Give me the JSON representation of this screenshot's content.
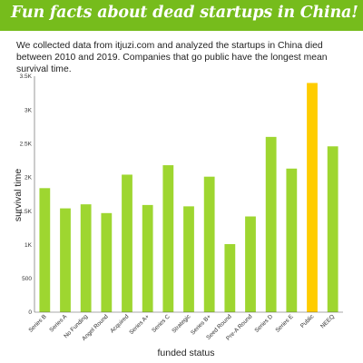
{
  "title": "Fun facts about dead startups in China!",
  "subtitle": "We collected data from itjuzi.com and analyzed the startups in China died between 2010 and 2019. Companies that go public have the longest mean survival time.",
  "colors": {
    "banner": "#76bc1c",
    "bar": "#9ed630",
    "highlight": "#ffcc00"
  },
  "chart_data": {
    "type": "bar",
    "title": "",
    "xlabel": "funded status",
    "ylabel": "survival time",
    "categories": [
      "Series B",
      "Series A",
      "No Funding",
      "Angel Round",
      "Acquired",
      "Series A+",
      "Series C",
      "Strategic",
      "Series B+",
      "Seed Round",
      "Pre-A Round",
      "Series D",
      "Series E",
      "Public",
      "NEEQ"
    ],
    "values": [
      1840,
      1540,
      1600,
      1470,
      2040,
      1590,
      2180,
      1570,
      2010,
      1010,
      1420,
      2600,
      2130,
      3400,
      2460
    ],
    "highlight_category": "Public",
    "ylim": [
      0,
      3500
    ],
    "yticks": [
      0,
      500,
      1000,
      1500,
      2000,
      2500,
      3000,
      3500
    ],
    "ytick_labels": [
      "0",
      "500",
      "1K",
      "1.5K",
      "2K",
      "2.5K",
      "3K",
      "3.5K"
    ],
    "grid": false,
    "legend": "none"
  }
}
